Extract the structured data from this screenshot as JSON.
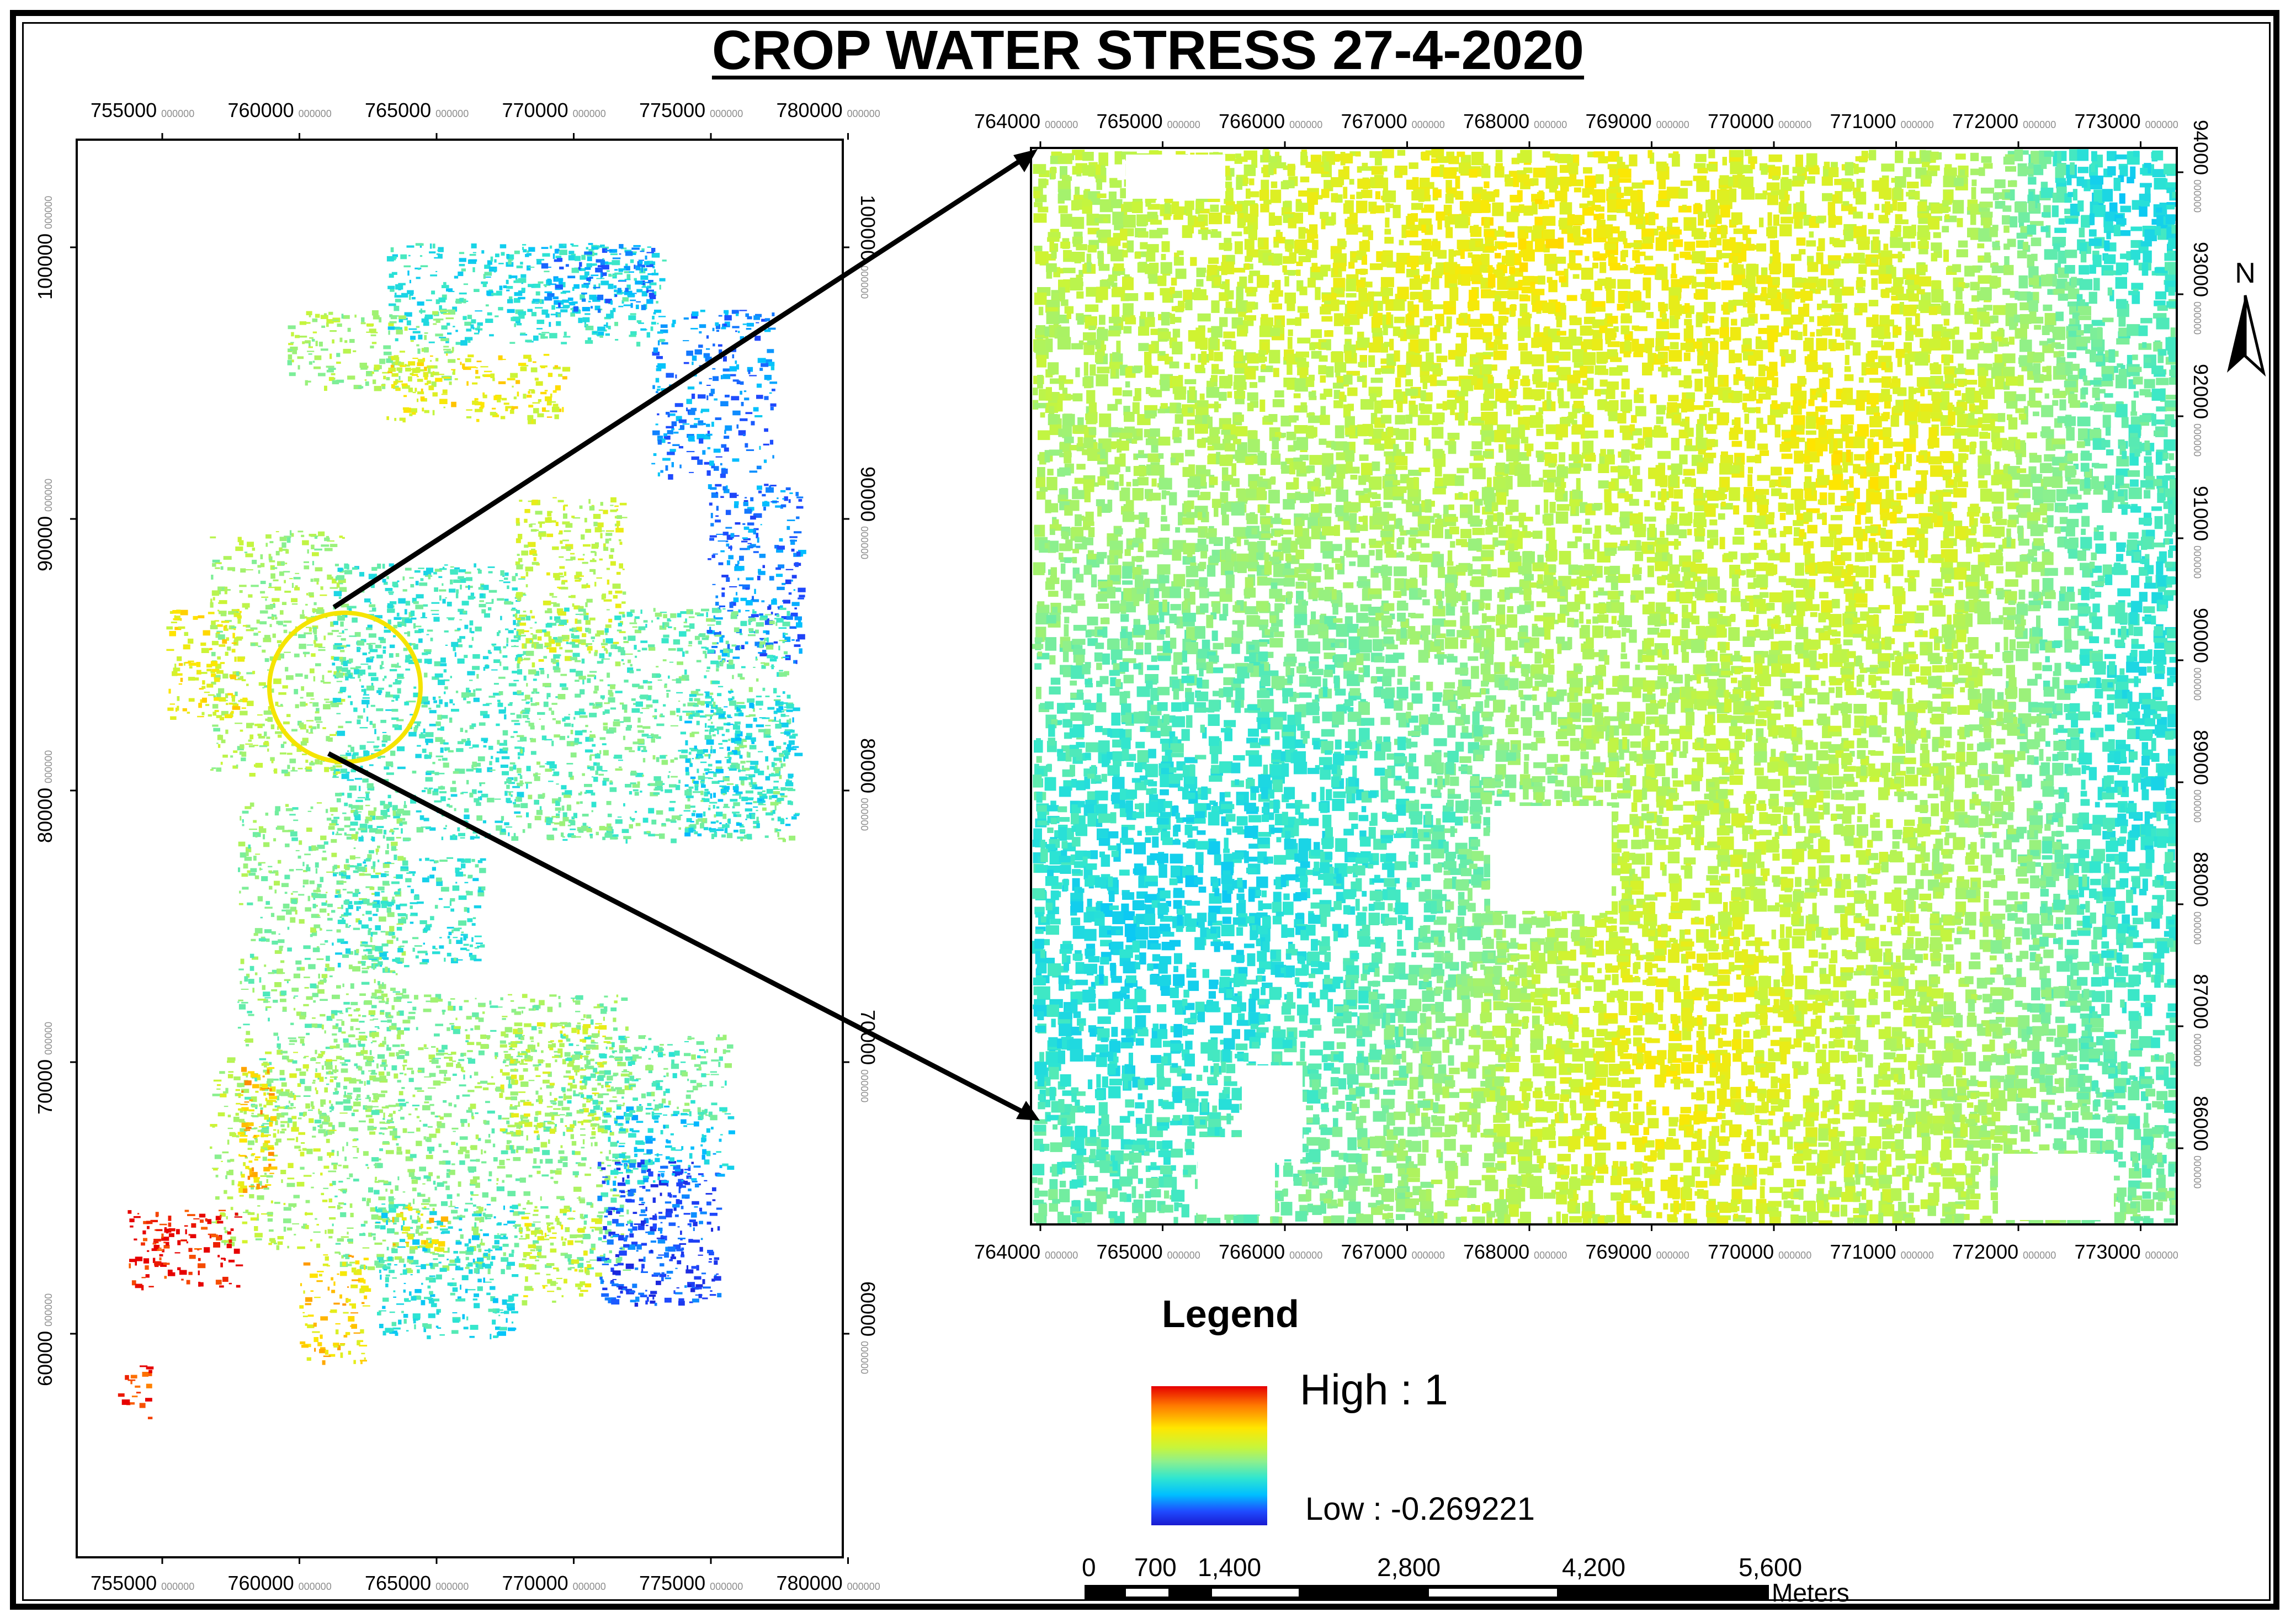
{
  "title": "CROP WATER STRESS 27-4-2020",
  "overview_map": {
    "x_ticks": [
      {
        "label": "755000",
        "suffix": "000000"
      },
      {
        "label": "760000",
        "suffix": "000000"
      },
      {
        "label": "765000",
        "suffix": "000000"
      },
      {
        "label": "770000",
        "suffix": "000000"
      },
      {
        "label": "775000",
        "suffix": "000000"
      },
      {
        "label": "780000",
        "suffix": "000000"
      }
    ],
    "y_ticks": [
      {
        "label": "100000",
        "suffix": "000000"
      },
      {
        "label": "90000",
        "suffix": "000000"
      },
      {
        "label": "80000",
        "suffix": "000000"
      },
      {
        "label": "70000",
        "suffix": "000000"
      },
      {
        "label": "60000",
        "suffix": "000000"
      }
    ],
    "highlight_color": "#f5e400"
  },
  "detail_map": {
    "x_ticks": [
      {
        "label": "764000",
        "suffix": "000000"
      },
      {
        "label": "765000",
        "suffix": "000000"
      },
      {
        "label": "766000",
        "suffix": "000000"
      },
      {
        "label": "767000",
        "suffix": "000000"
      },
      {
        "label": "768000",
        "suffix": "000000"
      },
      {
        "label": "769000",
        "suffix": "000000"
      },
      {
        "label": "770000",
        "suffix": "000000"
      },
      {
        "label": "771000",
        "suffix": "000000"
      },
      {
        "label": "772000",
        "suffix": "000000"
      },
      {
        "label": "773000",
        "suffix": "000000"
      }
    ],
    "y_ticks": [
      {
        "label": "94000",
        "suffix": "000000"
      },
      {
        "label": "93000",
        "suffix": "000000"
      },
      {
        "label": "92000",
        "suffix": "000000"
      },
      {
        "label": "91000",
        "suffix": "000000"
      },
      {
        "label": "90000",
        "suffix": "000000"
      },
      {
        "label": "89000",
        "suffix": "000000"
      },
      {
        "label": "88000",
        "suffix": "000000"
      },
      {
        "label": "87000",
        "suffix": "000000"
      },
      {
        "label": "86000",
        "suffix": "000000"
      }
    ]
  },
  "north_arrow": {
    "label": "N",
    "icon": "north-arrow-icon"
  },
  "legend": {
    "title": "Legend",
    "high_label": "High : 1",
    "low_label": "Low : -0.269221",
    "ramp_colors": [
      "#e60000",
      "#ff7a00",
      "#ffe600",
      "#c8f53a",
      "#8ef08c",
      "#30e6d0",
      "#00bfff",
      "#1f4bff",
      "#1a1ad0"
    ]
  },
  "scale_bar": {
    "labels": [
      "0",
      "700",
      "1,400",
      "2,800",
      "4,200",
      "5,600"
    ],
    "unit": "Meters"
  }
}
